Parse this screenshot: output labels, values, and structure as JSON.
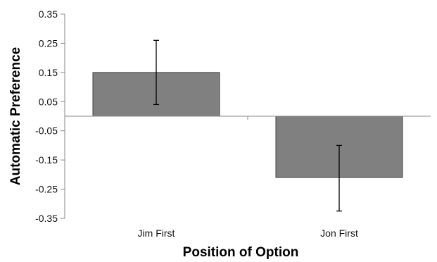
{
  "chart_data": {
    "type": "bar",
    "title": "",
    "xlabel": "Position of Option",
    "ylabel": "Automatic Preference",
    "categories": [
      "Jim First",
      "Jon First"
    ],
    "values": [
      0.15,
      -0.21
    ],
    "error_bars": [
      {
        "low": 0.04,
        "high": 0.26
      },
      {
        "low": -0.325,
        "high": -0.1
      }
    ],
    "ylim": [
      -0.35,
      0.35
    ],
    "yticks": [
      0.35,
      0.25,
      0.15,
      0.05,
      -0.05,
      -0.15,
      -0.25,
      -0.35
    ],
    "ytick_labels": [
      "0.35",
      "0.25",
      "0.15",
      "0.05",
      "-0.05",
      "-0.15",
      "-0.25",
      "-0.35"
    ],
    "grid": false,
    "legend": "none",
    "bar_color": "#808080",
    "bar_edge_color": "#404040"
  }
}
